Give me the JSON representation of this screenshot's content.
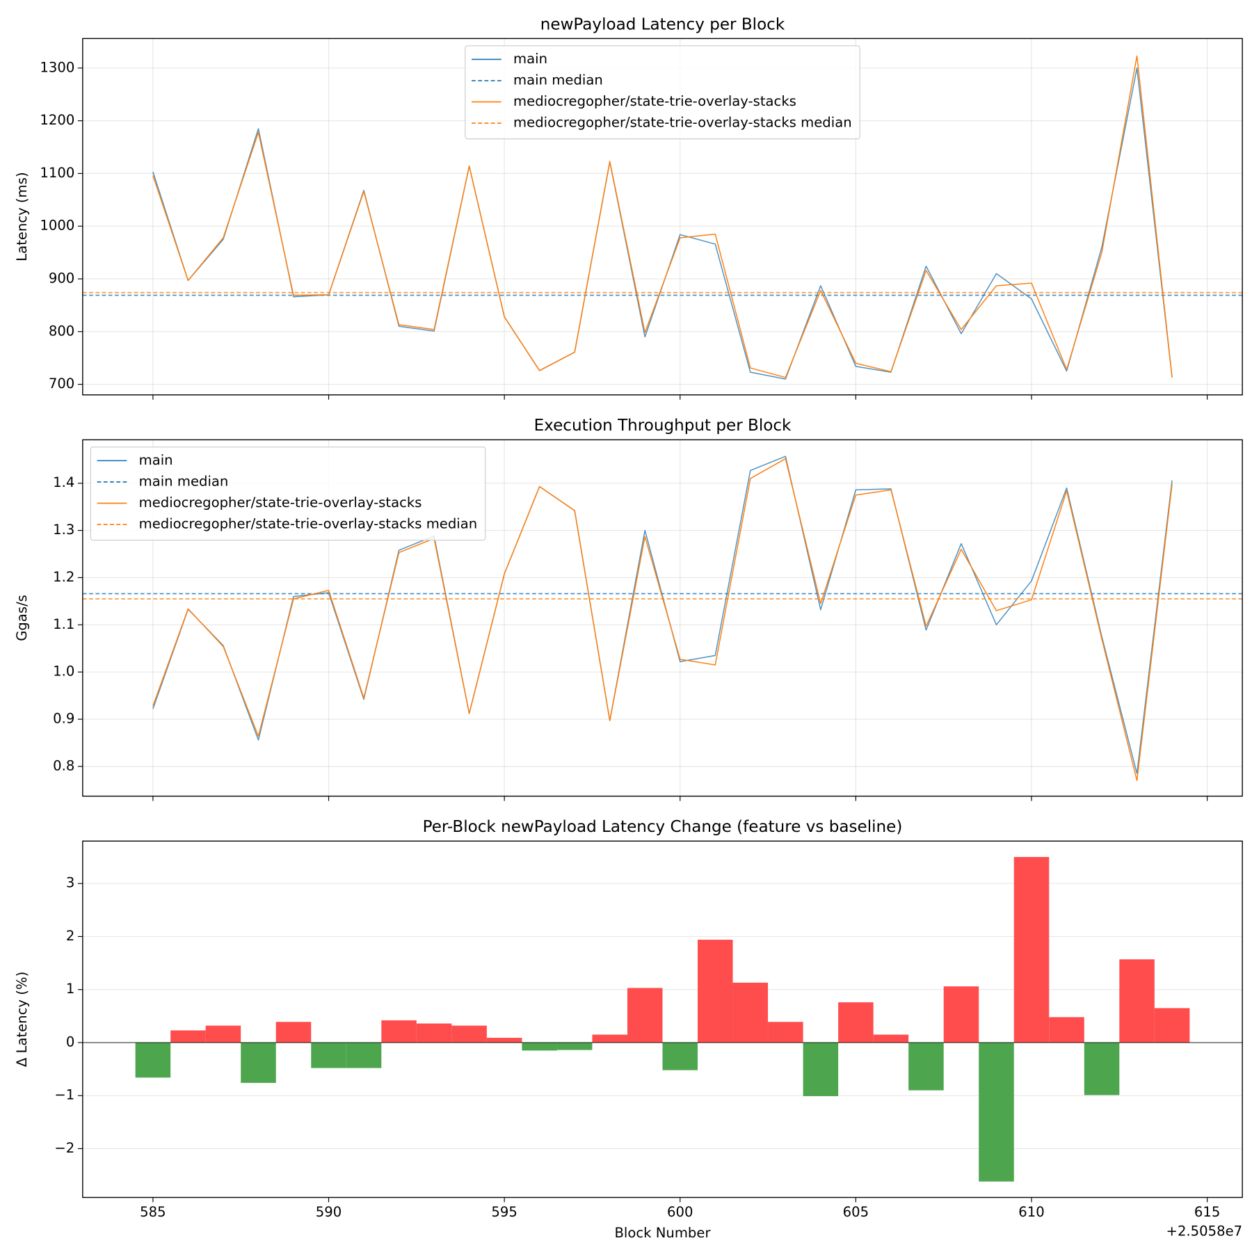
{
  "chart_data": [
    {
      "type": "line",
      "title": "newPayload Latency per Block",
      "ylabel": "Latency (ms)",
      "x": [
        585,
        586,
        587,
        588,
        589,
        590,
        591,
        592,
        593,
        594,
        595,
        596,
        597,
        598,
        599,
        600,
        601,
        602,
        603,
        604,
        605,
        606,
        607,
        608,
        609,
        610,
        611,
        612,
        613,
        614
      ],
      "xlim": [
        583,
        616
      ],
      "xticks": [
        585,
        590,
        595,
        600,
        605,
        610,
        615
      ],
      "ylim": [
        680,
        1356
      ],
      "yticks": [
        700,
        800,
        900,
        1000,
        1100,
        1200,
        1300
      ],
      "grid": "both",
      "legend": "upper center",
      "series": [
        {
          "name": "main",
          "color": "#1f77b4",
          "values": [
            1103,
            897,
            975,
            1185,
            866,
            870,
            1068,
            810,
            801,
            1114,
            828,
            726,
            761,
            1122,
            790,
            984,
            966,
            723,
            710,
            887,
            734,
            723,
            924,
            796,
            910,
            862,
            725,
            960,
            1300,
            713
          ]
        },
        {
          "name": "mediocregopher/state-trie-overlay-stacks",
          "color": "#ff7f0e",
          "values": [
            1096,
            897,
            978,
            1178,
            869,
            870,
            1066,
            813,
            804,
            1114,
            828,
            726,
            761,
            1123,
            798,
            978,
            985,
            731,
            713,
            878,
            740,
            724,
            916,
            804,
            887,
            892,
            728,
            950,
            1323,
            713
          ]
        }
      ],
      "medians": [
        {
          "name": "main median",
          "color": "#1f77b4",
          "value": 869
        },
        {
          "name": "mediocregopher/state-trie-overlay-stacks median",
          "color": "#ff7f0e",
          "value": 874
        }
      ]
    },
    {
      "type": "line",
      "title": "Execution Throughput per Block",
      "ylabel": "Ggas/s",
      "x": [
        585,
        586,
        587,
        588,
        589,
        590,
        591,
        592,
        593,
        594,
        595,
        596,
        597,
        598,
        599,
        600,
        601,
        602,
        603,
        604,
        605,
        606,
        607,
        608,
        609,
        610,
        611,
        612,
        613,
        614
      ],
      "xlim": [
        583,
        616
      ],
      "xticks": [
        585,
        590,
        595,
        600,
        605,
        610,
        615
      ],
      "ylim": [
        0.737,
        1.492
      ],
      "yticks": [
        0.8,
        0.9,
        {
          "value": 1,
          "label": "1.0"
        },
        1.1,
        1.2,
        1.3,
        1.4
      ],
      "grid": "both",
      "legend": "upper left",
      "series": [
        {
          "name": "main",
          "color": "#1f77b4",
          "values": [
            0.922,
            1.133,
            1.056,
            0.856,
            1.16,
            1.168,
            0.942,
            1.258,
            1.288,
            0.912,
            1.208,
            1.393,
            1.342,
            0.897,
            1.3,
            1.022,
            1.035,
            1.427,
            1.457,
            1.132,
            1.386,
            1.388,
            1.089,
            1.272,
            1.1,
            1.193,
            1.39,
            1.075,
            0.785,
            1.406
          ]
        },
        {
          "name": "mediocregopher/state-trie-overlay-stacks",
          "color": "#ff7f0e",
          "values": [
            0.928,
            1.134,
            1.054,
            0.864,
            1.155,
            1.173,
            0.945,
            1.253,
            1.283,
            0.912,
            1.208,
            1.393,
            1.342,
            0.897,
            1.287,
            1.027,
            1.015,
            1.41,
            1.452,
            1.145,
            1.375,
            1.386,
            1.097,
            1.26,
            1.13,
            1.153,
            1.384,
            1.07,
            0.77,
            1.398
          ]
        }
      ],
      "medians": [
        {
          "name": "main median",
          "color": "#1f77b4",
          "value": 1.166
        },
        {
          "name": "mediocregopher/state-trie-overlay-stacks median",
          "color": "#ff7f0e",
          "value": 1.155
        }
      ]
    },
    {
      "type": "bar",
      "title": "Per-Block newPayload Latency Change (feature vs baseline)",
      "ylabel": "Δ Latency (%)",
      "xlabel": "Block Number",
      "x_offset_label": "+2.5058e7",
      "x": [
        585,
        586,
        587,
        588,
        589,
        590,
        591,
        592,
        593,
        594,
        595,
        596,
        597,
        598,
        599,
        600,
        601,
        602,
        603,
        604,
        605,
        606,
        607,
        608,
        609,
        610,
        611,
        612,
        613,
        614
      ],
      "values": [
        -0.66,
        0.23,
        0.32,
        -0.76,
        0.39,
        -0.48,
        -0.48,
        0.42,
        0.36,
        0.32,
        0.09,
        -0.15,
        -0.14,
        0.15,
        1.03,
        -0.52,
        1.94,
        1.13,
        0.39,
        -1.01,
        0.76,
        0.15,
        -0.9,
        1.06,
        -2.62,
        3.5,
        0.48,
        -0.99,
        1.57,
        0.65
      ],
      "positive_color": "#ff4d4d",
      "negative_color": "#4da64d",
      "zero_line": true,
      "xlim": [
        583,
        616
      ],
      "xticks": [
        585,
        590,
        595,
        600,
        605,
        610,
        615
      ],
      "ylim": [
        -2.92,
        3.8
      ],
      "yticks": [
        {
          "value": -2,
          "label": "−2"
        },
        {
          "value": -1,
          "label": "−1"
        },
        0,
        1,
        2,
        3
      ],
      "grid": "y"
    }
  ]
}
